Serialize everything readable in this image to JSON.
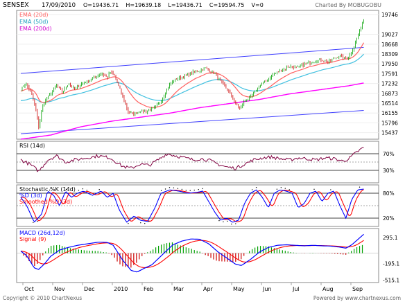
{
  "header": {
    "symbol": "SENSEX",
    "date": "17/09/2010",
    "ohlcv": "O=19436.71    H=19639.18    L=19436.71    C=19594.75    V=0",
    "charted_by": "Charted By MOBUGOBU"
  },
  "footer": {
    "copyright": "Copyright © 2010 ChartNexus",
    "powered_by": "Powered by www.chartnexus.com"
  },
  "colors": {
    "up": "#00a000",
    "down": "#cc0000",
    "ema20": "#ff6060",
    "ema50": "#40c0e0",
    "ema200": "#ff00ff",
    "channel": "#4040ff",
    "rsi": "#800040",
    "stoch_k": "#0000ff",
    "stoch_d": "#ff0000",
    "macd": "#0000ff",
    "signal": "#ff0000"
  },
  "chart_data": [
    {
      "type": "candlestick",
      "panel": "price",
      "legend": [
        "EMA (20d)",
        "EMA (50d)",
        "EMA (200d)"
      ],
      "ylim": [
        15200,
        19900
      ],
      "yticks": [
        19746,
        19027,
        18668,
        18309,
        17950,
        17591,
        17232,
        16873,
        16514,
        16155,
        15796,
        15437
      ],
      "xtick_labels": [
        "Oct",
        "Nov",
        "Dec",
        "2010",
        "Feb",
        "Mar",
        "Apr",
        "May",
        "Jun",
        "Jul",
        "Aug",
        "Sep"
      ],
      "xtick_months": [
        0,
        1,
        2,
        3,
        4,
        5,
        6,
        7,
        8,
        9,
        10,
        11
      ],
      "close_anchors": [
        [
          0.0,
          17000
        ],
        [
          0.15,
          17250
        ],
        [
          0.35,
          16900
        ],
        [
          0.5,
          16300
        ],
        [
          0.6,
          15650
        ],
        [
          0.75,
          16500
        ],
        [
          1.0,
          16850
        ],
        [
          1.2,
          17150
        ],
        [
          1.4,
          16900
        ],
        [
          1.6,
          17250
        ],
        [
          1.8,
          17000
        ],
        [
          2.0,
          17200
        ],
        [
          2.2,
          17300
        ],
        [
          2.5,
          17450
        ],
        [
          2.7,
          17600
        ],
        [
          2.9,
          17450
        ],
        [
          3.0,
          17650
        ],
        [
          3.15,
          17500
        ],
        [
          3.4,
          16800
        ],
        [
          3.6,
          16200
        ],
        [
          3.8,
          16100
        ],
        [
          4.0,
          16250
        ],
        [
          4.2,
          16200
        ],
        [
          4.5,
          16350
        ],
        [
          4.7,
          16600
        ],
        [
          5.0,
          17200
        ],
        [
          5.2,
          17400
        ],
        [
          5.5,
          17500
        ],
        [
          5.8,
          17650
        ],
        [
          6.0,
          17700
        ],
        [
          6.2,
          17800
        ],
        [
          6.5,
          17600
        ],
        [
          6.7,
          17300
        ],
        [
          7.0,
          16900
        ],
        [
          7.2,
          16500
        ],
        [
          7.35,
          16300
        ],
        [
          7.5,
          16600
        ],
        [
          7.7,
          16700
        ],
        [
          8.0,
          17150
        ],
        [
          8.3,
          17400
        ],
        [
          8.5,
          17600
        ],
        [
          8.7,
          17700
        ],
        [
          9.0,
          17850
        ],
        [
          9.3,
          17800
        ],
        [
          9.5,
          17950
        ],
        [
          9.7,
          18000
        ],
        [
          9.9,
          18050
        ],
        [
          10.1,
          18100
        ],
        [
          10.3,
          18000
        ],
        [
          10.5,
          18150
        ],
        [
          10.7,
          18250
        ],
        [
          10.85,
          18150
        ],
        [
          11.0,
          18200
        ],
        [
          11.2,
          18650
        ],
        [
          11.35,
          19100
        ],
        [
          11.5,
          19595
        ]
      ],
      "ema200_anchors": [
        [
          0.0,
          15200
        ],
        [
          1.0,
          15350
        ],
        [
          2.0,
          15650
        ],
        [
          3.0,
          15850
        ],
        [
          4.0,
          16000
        ],
        [
          5.0,
          16150
        ],
        [
          6.0,
          16350
        ],
        [
          7.0,
          16500
        ],
        [
          8.0,
          16650
        ],
        [
          9.0,
          16850
        ],
        [
          10.0,
          17000
        ],
        [
          11.0,
          17150
        ],
        [
          11.5,
          17250
        ]
      ],
      "channel_upper": [
        [
          0.0,
          17600
        ],
        [
          11.5,
          18550
        ]
      ],
      "channel_lower": [
        [
          0.0,
          15400
        ],
        [
          11.5,
          16250
        ]
      ]
    },
    {
      "type": "line",
      "panel": "rsi",
      "title": "RSI (14d)",
      "ylim": [
        0,
        100
      ],
      "yticks": [
        70,
        30
      ],
      "ytick_labels": [
        "70%",
        "30%"
      ],
      "anchors": [
        [
          0.0,
          55
        ],
        [
          0.3,
          45
        ],
        [
          0.6,
          28
        ],
        [
          0.9,
          55
        ],
        [
          1.2,
          65
        ],
        [
          1.5,
          50
        ],
        [
          1.8,
          55
        ],
        [
          2.2,
          60
        ],
        [
          2.6,
          65
        ],
        [
          3.0,
          60
        ],
        [
          3.4,
          40
        ],
        [
          3.7,
          35
        ],
        [
          4.0,
          45
        ],
        [
          4.3,
          42
        ],
        [
          4.6,
          55
        ],
        [
          4.9,
          70
        ],
        [
          5.2,
          65
        ],
        [
          5.5,
          60
        ],
        [
          5.8,
          55
        ],
        [
          6.0,
          58
        ],
        [
          6.3,
          55
        ],
        [
          6.6,
          45
        ],
        [
          6.9,
          38
        ],
        [
          7.2,
          35
        ],
        [
          7.5,
          45
        ],
        [
          7.8,
          55
        ],
        [
          8.1,
          60
        ],
        [
          8.4,
          62
        ],
        [
          8.7,
          58
        ],
        [
          9.0,
          55
        ],
        [
          9.3,
          60
        ],
        [
          9.6,
          58
        ],
        [
          9.9,
          55
        ],
        [
          10.2,
          60
        ],
        [
          10.5,
          58
        ],
        [
          10.8,
          52
        ],
        [
          11.0,
          58
        ],
        [
          11.2,
          70
        ],
        [
          11.35,
          78
        ],
        [
          11.5,
          85
        ]
      ]
    },
    {
      "type": "line",
      "panel": "stochastic",
      "legend": [
        "Stochastic %K (14d)",
        "%D (3d)",
        "Smoothed %D (3d)"
      ],
      "ylim": [
        0,
        100
      ],
      "yticks": [
        80,
        20
      ],
      "ytick_labels": [
        "80%",
        "20%"
      ],
      "k_anchors": [
        [
          0.0,
          70
        ],
        [
          0.2,
          50
        ],
        [
          0.45,
          10
        ],
        [
          0.7,
          30
        ],
        [
          0.9,
          85
        ],
        [
          1.1,
          75
        ],
        [
          1.3,
          50
        ],
        [
          1.5,
          85
        ],
        [
          1.7,
          70
        ],
        [
          1.9,
          80
        ],
        [
          2.1,
          85
        ],
        [
          2.4,
          75
        ],
        [
          2.7,
          85
        ],
        [
          2.9,
          70
        ],
        [
          3.1,
          80
        ],
        [
          3.3,
          40
        ],
        [
          3.55,
          10
        ],
        [
          3.8,
          25
        ],
        [
          4.0,
          15
        ],
        [
          4.25,
          12
        ],
        [
          4.5,
          45
        ],
        [
          4.7,
          80
        ],
        [
          5.0,
          88
        ],
        [
          5.3,
          85
        ],
        [
          5.6,
          80
        ],
        [
          5.9,
          82
        ],
        [
          6.1,
          85
        ],
        [
          6.3,
          60
        ],
        [
          6.5,
          35
        ],
        [
          6.7,
          15
        ],
        [
          6.9,
          20
        ],
        [
          7.1,
          10
        ],
        [
          7.3,
          15
        ],
        [
          7.5,
          55
        ],
        [
          7.7,
          80
        ],
        [
          7.9,
          88
        ],
        [
          8.1,
          70
        ],
        [
          8.3,
          45
        ],
        [
          8.5,
          80
        ],
        [
          8.7,
          88
        ],
        [
          8.9,
          85
        ],
        [
          9.1,
          80
        ],
        [
          9.3,
          45
        ],
        [
          9.5,
          55
        ],
        [
          9.7,
          80
        ],
        [
          9.9,
          85
        ],
        [
          10.1,
          60
        ],
        [
          10.3,
          80
        ],
        [
          10.5,
          85
        ],
        [
          10.7,
          50
        ],
        [
          10.9,
          20
        ],
        [
          11.1,
          65
        ],
        [
          11.3,
          88
        ],
        [
          11.5,
          90
        ]
      ]
    },
    {
      "type": "bar+line",
      "panel": "macd",
      "legend": [
        "MACD (26d,12d)",
        "Signal (9)"
      ],
      "ylim": [
        -560,
        470
      ],
      "yticks": [
        295.1,
        -195.1,
        -515.1
      ],
      "macd_anchors": [
        [
          0.0,
          40
        ],
        [
          0.2,
          -50
        ],
        [
          0.45,
          -280
        ],
        [
          0.6,
          -310
        ],
        [
          0.8,
          -200
        ],
        [
          1.0,
          -60
        ],
        [
          1.3,
          60
        ],
        [
          1.6,
          110
        ],
        [
          1.9,
          150
        ],
        [
          2.2,
          175
        ],
        [
          2.6,
          210
        ],
        [
          2.9,
          205
        ],
        [
          3.1,
          150
        ],
        [
          3.4,
          -120
        ],
        [
          3.7,
          -330
        ],
        [
          3.9,
          -360
        ],
        [
          4.1,
          -300
        ],
        [
          4.4,
          -220
        ],
        [
          4.8,
          0
        ],
        [
          5.1,
          160
        ],
        [
          5.4,
          230
        ],
        [
          5.7,
          270
        ],
        [
          6.0,
          265
        ],
        [
          6.3,
          180
        ],
        [
          6.6,
          30
        ],
        [
          6.9,
          -90
        ],
        [
          7.2,
          -210
        ],
        [
          7.4,
          -235
        ],
        [
          7.7,
          -120
        ],
        [
          8.0,
          20
        ],
        [
          8.3,
          110
        ],
        [
          8.6,
          150
        ],
        [
          8.9,
          160
        ],
        [
          9.2,
          150
        ],
        [
          9.5,
          140
        ],
        [
          9.8,
          150
        ],
        [
          10.1,
          140
        ],
        [
          10.4,
          135
        ],
        [
          10.7,
          115
        ],
        [
          10.9,
          95
        ],
        [
          11.1,
          160
        ],
        [
          11.3,
          260
        ],
        [
          11.5,
          360
        ]
      ]
    }
  ]
}
